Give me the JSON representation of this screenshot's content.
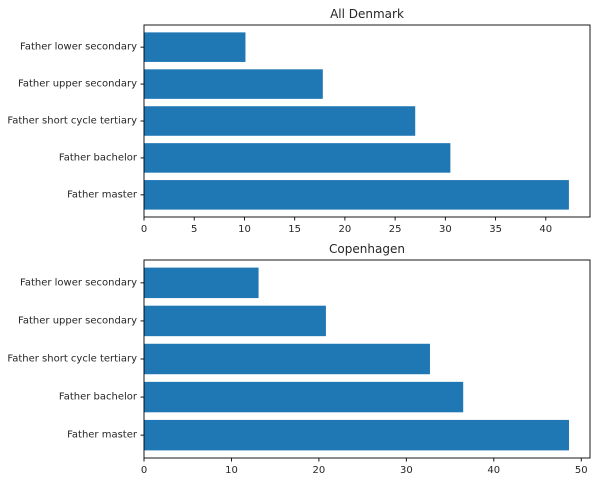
{
  "chart_data": [
    {
      "type": "bar",
      "orientation": "horizontal",
      "title": "All Denmark",
      "categories": [
        "Father master",
        "Father bachelor",
        "Father short cycle tertiary",
        "Father upper secondary",
        "Father lower secondary"
      ],
      "values": [
        42.3,
        30.5,
        27.0,
        17.8,
        10.1
      ],
      "xlim": [
        0,
        44.4
      ],
      "xticks": [
        0,
        5,
        10,
        15,
        20,
        25,
        30,
        35,
        40
      ],
      "xlabel": "",
      "ylabel": "",
      "grid": false,
      "bar_color": "#1f77b4"
    },
    {
      "type": "bar",
      "orientation": "horizontal",
      "title": "Copenhagen",
      "categories": [
        "Father master",
        "Father bachelor",
        "Father short cycle tertiary",
        "Father upper secondary",
        "Father lower secondary"
      ],
      "values": [
        48.6,
        36.5,
        32.7,
        20.8,
        13.1
      ],
      "xlim": [
        0,
        51.0
      ],
      "xticks": [
        0,
        10,
        20,
        30,
        40,
        50
      ],
      "xlabel": "",
      "ylabel": "",
      "grid": false,
      "bar_color": "#1f77b4"
    }
  ]
}
